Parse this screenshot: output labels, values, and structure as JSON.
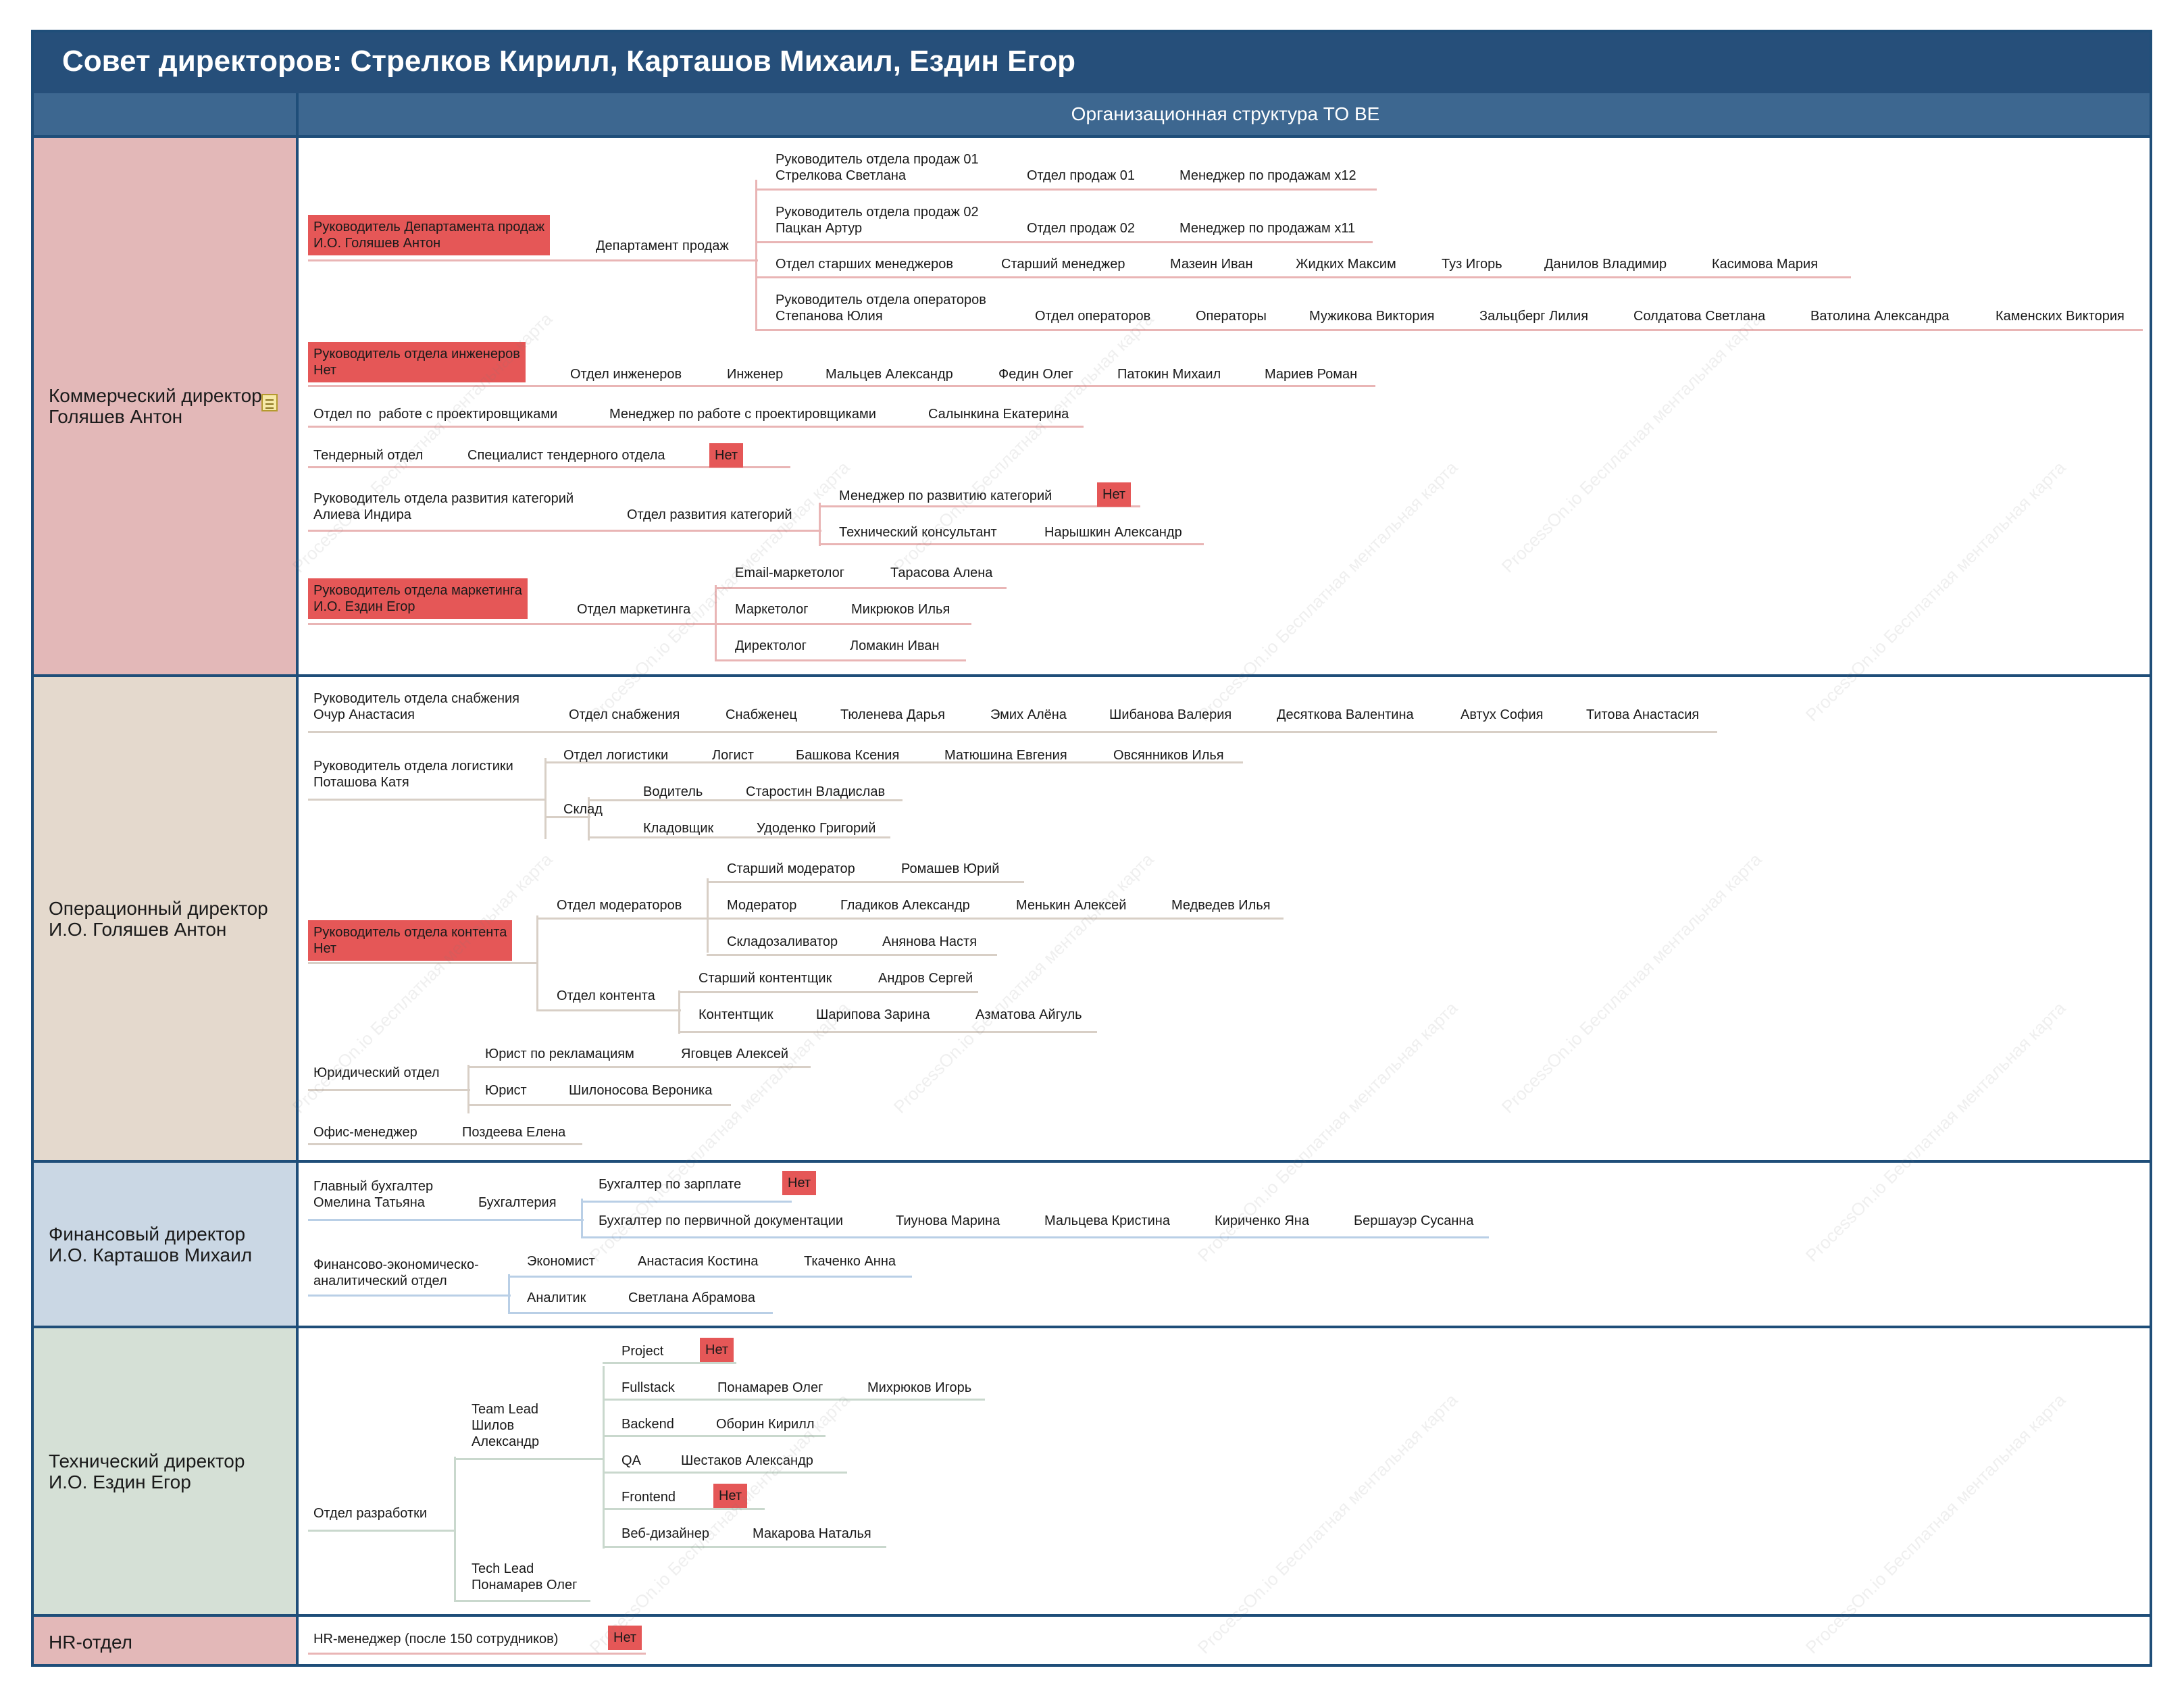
{
  "header": {
    "title": "Совет директоров: Стрелков Кирилл, Карташов Михаил, Ездин Егор",
    "subtitle": "Организационная структура TO BE"
  },
  "colors": {
    "header": "#264f7a",
    "subheader": "#3d6790",
    "border": "#1f4e79",
    "highlight": "#e55757",
    "commercial": "#e3b8b8",
    "operations": "#e4d9cd",
    "finance": "#cad7e4",
    "technical": "#d5e0d6",
    "hr": "#e3b8b8"
  },
  "watermark": "ProcessOn.io Бесплатная ментальная карта",
  "bands": [
    {
      "label": "Коммерческий директор\nГоляшев Антон",
      "note_icon": "note-icon"
    },
    {
      "label": "Операционный директор\nИ.О. Голяшев Антон"
    },
    {
      "label": "Финансовый директор\nИ.О. Карташов Михаил"
    },
    {
      "label": "Технический директор\nИ.О. Ездин Егор"
    },
    {
      "label": "HR-отдел"
    }
  ],
  "commercial": {
    "sales_head": "Руководитель Департамента продаж\nИ.О. Голяшев Антон",
    "sales_dept": "Департамент продаж",
    "sales_lead_01": "Руководитель отдела продаж 01\nСтрелкова Светлана",
    "sales_dept_01": "Отдел продаж 01",
    "sales_mgr_01": "Менеджер по продажам x12",
    "sales_lead_02": "Руководитель отдела продаж 02\nПацкан Артур",
    "sales_dept_02": "Отдел продаж 02",
    "sales_mgr_02": "Менеджер по продажам x11",
    "senior_dept": "Отдел старших менеджеров",
    "senior_role": "Старший менеджер",
    "senior_people": [
      "Мазеин Иван",
      "Жидких Максим",
      "Туз Игорь",
      "Данилов Владимир",
      "Касимова Мария"
    ],
    "ops_lead": "Руководитель отдела операторов\nСтепанова Юлия",
    "ops_dept": "Отдел операторов",
    "ops_role": "Операторы",
    "ops_people": [
      "Мужикова Виктория",
      "Зальцберг Лилия",
      "Солдатова Светлана",
      "Ватолина Александра",
      "Каменских Виктория"
    ],
    "eng_head": "Руководитель отдела инженеров\nНет",
    "eng_dept": "Отдел инженеров",
    "eng_role": "Инженер",
    "eng_people": [
      "Мальцев Александр",
      "Федин Олег",
      "Патокин Михаил",
      "Мариев Роман"
    ],
    "design_dept": "Отдел по  работе с проектировщиками",
    "design_role": "Менеджер по работе с проектировщиками",
    "design_person": "Салынкина Екатерина",
    "tender_dept": "Тендерный отдел",
    "tender_role": "Специалист тендерного отдела",
    "tender_vacant": "Нет",
    "cat_lead": "Руководитель отдела развития категорий\nАлиева Индира",
    "cat_dept": "Отдел развития категорий",
    "cat_mgr": "Менеджер по развитию категорий",
    "cat_mgr_vacant": "Нет",
    "cat_consultant": "Технический консультант",
    "cat_consultant_person": "Нарышкин Александр",
    "mkt_head": "Руководитель отдела маркетинга\nИ.О. Ездин Егор",
    "mkt_dept": "Отдел маркетинга",
    "mkt_email": "Email-маркетолог",
    "mkt_email_person": "Тарасова Алена",
    "mkt_role": "Маркетолог",
    "mkt_person": "Микрюков Илья",
    "mkt_director": "Директолог",
    "mkt_director_person": "Ломакин Иван"
  },
  "operations": {
    "supply_lead": "Руководитель отдела снабжения\nОчур Анастасия",
    "supply_dept": "Отдел снабжения",
    "supply_role": "Снабженец",
    "supply_people": [
      "Тюленева Дарья",
      "Эмих Алёна",
      "Шибанова Валерия",
      "Десяткова Валентина",
      "Автух София",
      "Титова Анастасия"
    ],
    "log_lead": "Руководитель отдела логистики\nПоташова Катя",
    "log_dept": "Отдел логистики",
    "log_role": "Логист",
    "log_people": [
      "Башкова Ксения",
      "Матюшина Евгения",
      "Овсянников Илья"
    ],
    "warehouse": "Склад",
    "driver": "Водитель",
    "driver_person": "Старостин Владислав",
    "storekeeper": "Кладовщик",
    "storekeeper_person": "Удоденко Григорий",
    "content_head": "Руководитель отдела контента\nНет",
    "mod_dept": "Отдел модераторов",
    "senior_mod": "Старший модератор",
    "senior_mod_person": "Ромашев Юрий",
    "mod_role": "Модератор",
    "mod_people": [
      "Гладиков Александр",
      "Менькин Алексей",
      "Медведев Илья"
    ],
    "warehouse_loader": "Складозаливатор",
    "warehouse_loader_person": "Анянова Настя",
    "content_dept": "Отдел контента",
    "senior_content": "Старший контентщик",
    "senior_content_person": "Андров Сергей",
    "content_role": "Контентщик",
    "content_people": [
      "Шарипова Зарина",
      "Азматова Айгуль"
    ],
    "legal_dept": "Юридический отдел",
    "claims_lawyer": "Юрист по рекламациям",
    "claims_lawyer_person": "Яговцев Алексей",
    "lawyer": "Юрист",
    "lawyer_person": "Шилоносова Вероника",
    "office_mgr": "Офис-менеджер",
    "office_mgr_person": "Поздеева Елена"
  },
  "finance": {
    "chief_accountant": "Главный бухгалтер\nОмелина Татьяна",
    "accounting": "Бухгалтерия",
    "payroll_accountant": "Бухгалтер по зарплате",
    "payroll_vacant": "Нет",
    "primary_accountant": "Бухгалтер по первичной документации",
    "primary_people": [
      "Тиунова Марина",
      "Мальцева Кристина",
      "Кириченко Яна",
      "Бершауэр Сусанна"
    ],
    "analytics_dept": "Финансово-экономическо-\nаналитический отдел",
    "economist": "Экономист",
    "economist_people": [
      "Анастасия Костина",
      "Ткаченко Анна"
    ],
    "analyst": "Аналитик",
    "analyst_person": "Светлана Абрамова"
  },
  "technical": {
    "dev_dept": "Отдел разработки",
    "team_lead": "Team Lead\nШилов\nАлександр",
    "tech_lead": "Tech Lead\nПонамарев Олег",
    "project": "Project",
    "project_vacant": "Нет",
    "fullstack": "Fullstack",
    "fullstack_people": [
      "Понамарев Олег",
      "Михрюков Игорь"
    ],
    "backend": "Backend",
    "backend_person": "Оборин Кирилл",
    "qa": "QA",
    "qa_person": "Шестаков Александр",
    "frontend": "Frontend",
    "frontend_vacant": "Нет",
    "webdesigner": "Веб-дизайнер",
    "webdesigner_person": "Макарова Наталья"
  },
  "hr": {
    "hr_manager": "HR-менеджер (после 150 сотрудников)",
    "hr_vacant": "Нет"
  }
}
